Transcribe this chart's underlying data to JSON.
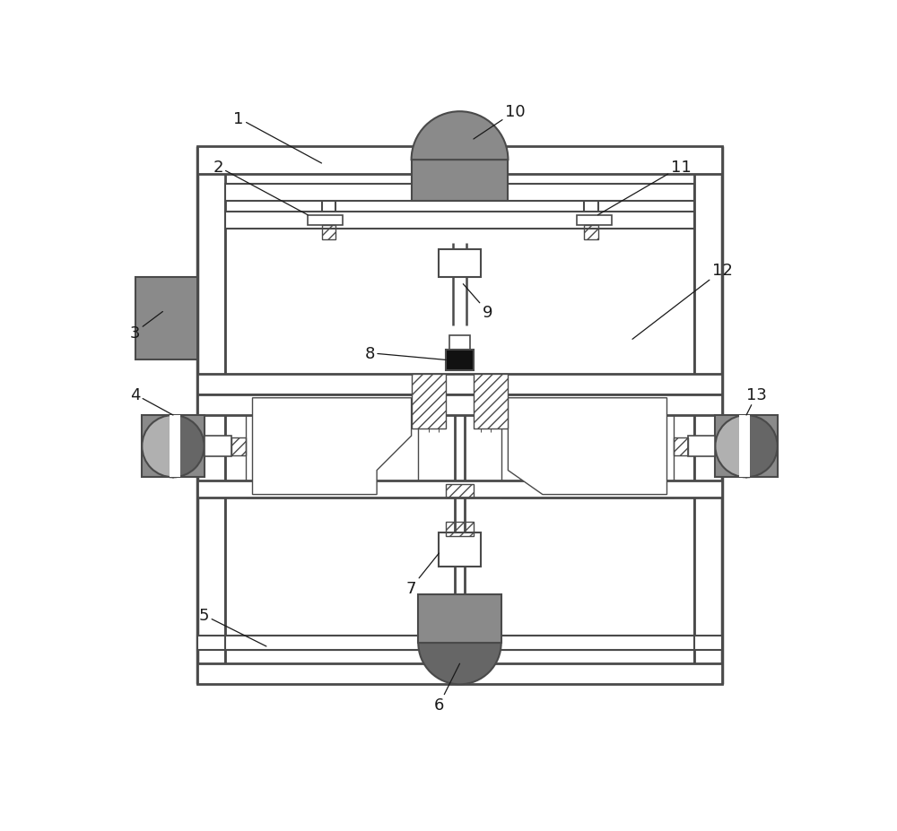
{
  "bg_color": "#ffffff",
  "lc": "#4a4a4a",
  "gray": "#8a8a8a",
  "dark_gray": "#666666",
  "light_gray": "#b0b0b0",
  "black": "#111111",
  "white": "#ffffff",
  "label_color": "#1a1a1a",
  "lw_main": 1.5,
  "lw_thin": 1.0,
  "figw": 10.0,
  "figh": 9.28
}
